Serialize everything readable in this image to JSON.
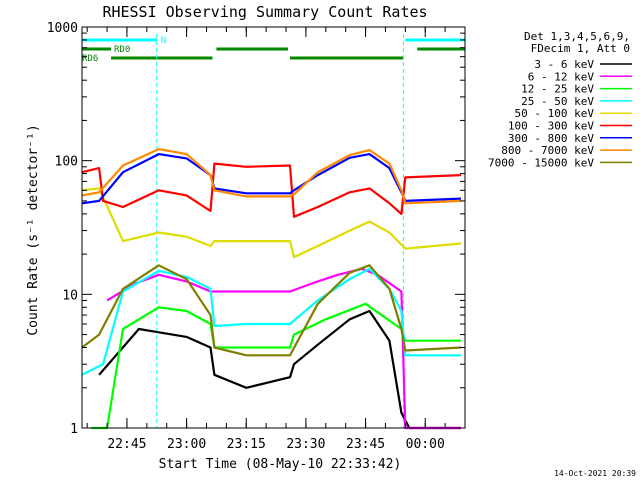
{
  "chart_data": {
    "type": "line",
    "title": "RHESSI Observing Summary Count Rates",
    "xlabel": "Start Time (08-May-10 22:33:42)",
    "ylabel": "Count Rate (s⁻¹ detector⁻¹)",
    "y_scale": "log",
    "ylim": [
      1,
      1000
    ],
    "xlim": [
      "22:33:42",
      "00:10:00"
    ],
    "x_ticks": [
      "22:45",
      "23:00",
      "23:15",
      "23:30",
      "23:45",
      "00:00"
    ],
    "y_ticks": [
      "1",
      "10",
      "100",
      "1000"
    ],
    "grid": false,
    "legend_position": "top-right",
    "legend_header": [
      "Det 1,3,4,5,6,9,",
      "FDecim 1, Att 0"
    ],
    "footer_date": "14-Oct-2021 20:39",
    "flags": [
      {
        "name": "N",
        "color": "#00ffff",
        "spans": [
          [
            "22:33:42",
            "22:52:30"
          ],
          [
            "23:55:00",
            "00:10:00"
          ]
        ]
      },
      {
        "name": "RD0",
        "color": "#008800",
        "spans": [
          [
            "22:33:42",
            "22:41:00"
          ],
          [
            "23:07:30",
            "23:25:30"
          ],
          [
            "23:58:00",
            "00:10:00"
          ]
        ]
      },
      {
        "name": "RD6",
        "color": "#008800",
        "spans": [
          [
            "22:41:00",
            "23:06:30"
          ],
          [
            "23:26:00",
            "23:54:30"
          ]
        ]
      }
    ],
    "dashed_lines": [
      "22:33:42",
      "22:52:30",
      "23:54:30",
      "00:10:00"
    ],
    "series": [
      {
        "name": "3 - 6 keV",
        "color": "#000000",
        "x": [
          "22:38",
          "22:48",
          "22:53",
          "23:00",
          "23:06",
          "23:07",
          "23:15",
          "23:26",
          "23:27",
          "23:33",
          "23:41",
          "23:46",
          "23:51",
          "23:54",
          "23:56",
          "00:09"
        ],
        "values": [
          2.5,
          5.5,
          5.2,
          4.8,
          4.0,
          2.5,
          2.0,
          2.4,
          3.0,
          4.2,
          6.5,
          7.5,
          4.5,
          1.3,
          1.0,
          1.0
        ]
      },
      {
        "name": "6 - 12 keV",
        "color": "#ff00ff",
        "x": [
          "22:40",
          "22:47",
          "22:53",
          "23:00",
          "23:06",
          "23:26",
          "23:33",
          "23:38",
          "23:44",
          "23:48",
          "23:54",
          "23:55",
          "00:09"
        ],
        "values": [
          9.0,
          12.0,
          14.0,
          12.5,
          10.5,
          10.5,
          12.5,
          14.0,
          15.5,
          14.0,
          10.5,
          1.0,
          1.0
        ]
      },
      {
        "name": "12 - 25 keV",
        "color": "#00ff00",
        "x": [
          "22:36",
          "22:40",
          "22:44",
          "22:53",
          "23:00",
          "23:06",
          "23:07",
          "23:15",
          "23:26",
          "23:27",
          "23:35",
          "23:45",
          "23:54",
          "23:55",
          "00:09"
        ],
        "values": [
          1.0,
          1.0,
          5.5,
          8.0,
          7.5,
          6.0,
          4.0,
          4.0,
          4.0,
          5.0,
          6.5,
          8.5,
          5.5,
          4.5,
          4.5
        ]
      },
      {
        "name": "25 - 50 keV",
        "color": "#00ffff",
        "x": [
          "22:33:42",
          "22:39",
          "22:44",
          "22:53",
          "23:00",
          "23:06",
          "23:07",
          "23:15",
          "23:26",
          "23:33",
          "23:41",
          "23:46",
          "23:51",
          "23:54",
          "23:55",
          "00:09"
        ],
        "values": [
          2.5,
          3.0,
          10.5,
          15.0,
          13.5,
          11.0,
          5.8,
          6.0,
          6.0,
          9.0,
          13.0,
          15.5,
          11.0,
          7.5,
          3.5,
          3.5
        ]
      },
      {
        "name": "50 - 100 keV",
        "color": "#dddd00",
        "x": [
          "22:33:42",
          "22:38",
          "22:44",
          "22:53",
          "23:00",
          "23:06",
          "23:07",
          "23:15",
          "23:26",
          "23:27",
          "23:33",
          "23:41",
          "23:46",
          "23:51",
          "23:55",
          "00:09"
        ],
        "values": [
          60,
          62,
          25,
          29,
          27,
          23,
          25,
          25,
          25,
          19,
          23,
          30,
          35,
          29,
          22,
          24
        ]
      },
      {
        "name": "100 - 300 keV",
        "color": "#ff0000",
        "x": [
          "22:33:42",
          "22:38",
          "22:39",
          "22:44",
          "22:53",
          "23:00",
          "23:06",
          "23:07",
          "23:15",
          "23:26",
          "23:27",
          "23:33",
          "23:41",
          "23:46",
          "23:51",
          "23:54",
          "23:55",
          "00:09"
        ],
        "values": [
          82,
          88,
          50,
          45,
          60,
          55,
          42,
          95,
          90,
          92,
          38,
          45,
          58,
          62,
          48,
          40,
          75,
          78
        ]
      },
      {
        "name": "300 - 800 keV",
        "color": "#0000ff",
        "x": [
          "22:33:42",
          "22:38",
          "22:44",
          "22:53",
          "23:00",
          "23:06",
          "23:07",
          "23:15",
          "23:26",
          "23:27",
          "23:33",
          "23:41",
          "23:46",
          "23:51",
          "23:54",
          "23:55",
          "00:09"
        ],
        "values": [
          48,
          50,
          82,
          112,
          104,
          78,
          62,
          57,
          57,
          60,
          78,
          105,
          112,
          88,
          58,
          50,
          52
        ]
      },
      {
        "name": "800 - 7000 keV",
        "color": "#ff8800",
        "x": [
          "22:33:42",
          "22:38",
          "22:44",
          "22:53",
          "23:00",
          "23:06",
          "23:07",
          "23:15",
          "23:26",
          "23:27",
          "23:33",
          "23:41",
          "23:46",
          "23:51",
          "23:54",
          "23:55",
          "00:09"
        ],
        "values": [
          55,
          58,
          92,
          122,
          112,
          78,
          60,
          54,
          54,
          56,
          82,
          110,
          120,
          95,
          60,
          48,
          50
        ]
      },
      {
        "name": "7000 - 15000 keV",
        "color": "#808000",
        "x": [
          "22:33:42",
          "22:38",
          "22:44",
          "22:53",
          "23:00",
          "23:06",
          "23:07",
          "23:15",
          "23:26",
          "23:33",
          "23:41",
          "23:46",
          "23:51",
          "23:54",
          "23:55",
          "00:09"
        ],
        "values": [
          4.0,
          5.0,
          11.0,
          16.5,
          13.0,
          7.0,
          4.0,
          3.5,
          3.5,
          8.5,
          14.5,
          16.5,
          11.0,
          5.5,
          3.8,
          4.0
        ]
      }
    ]
  }
}
